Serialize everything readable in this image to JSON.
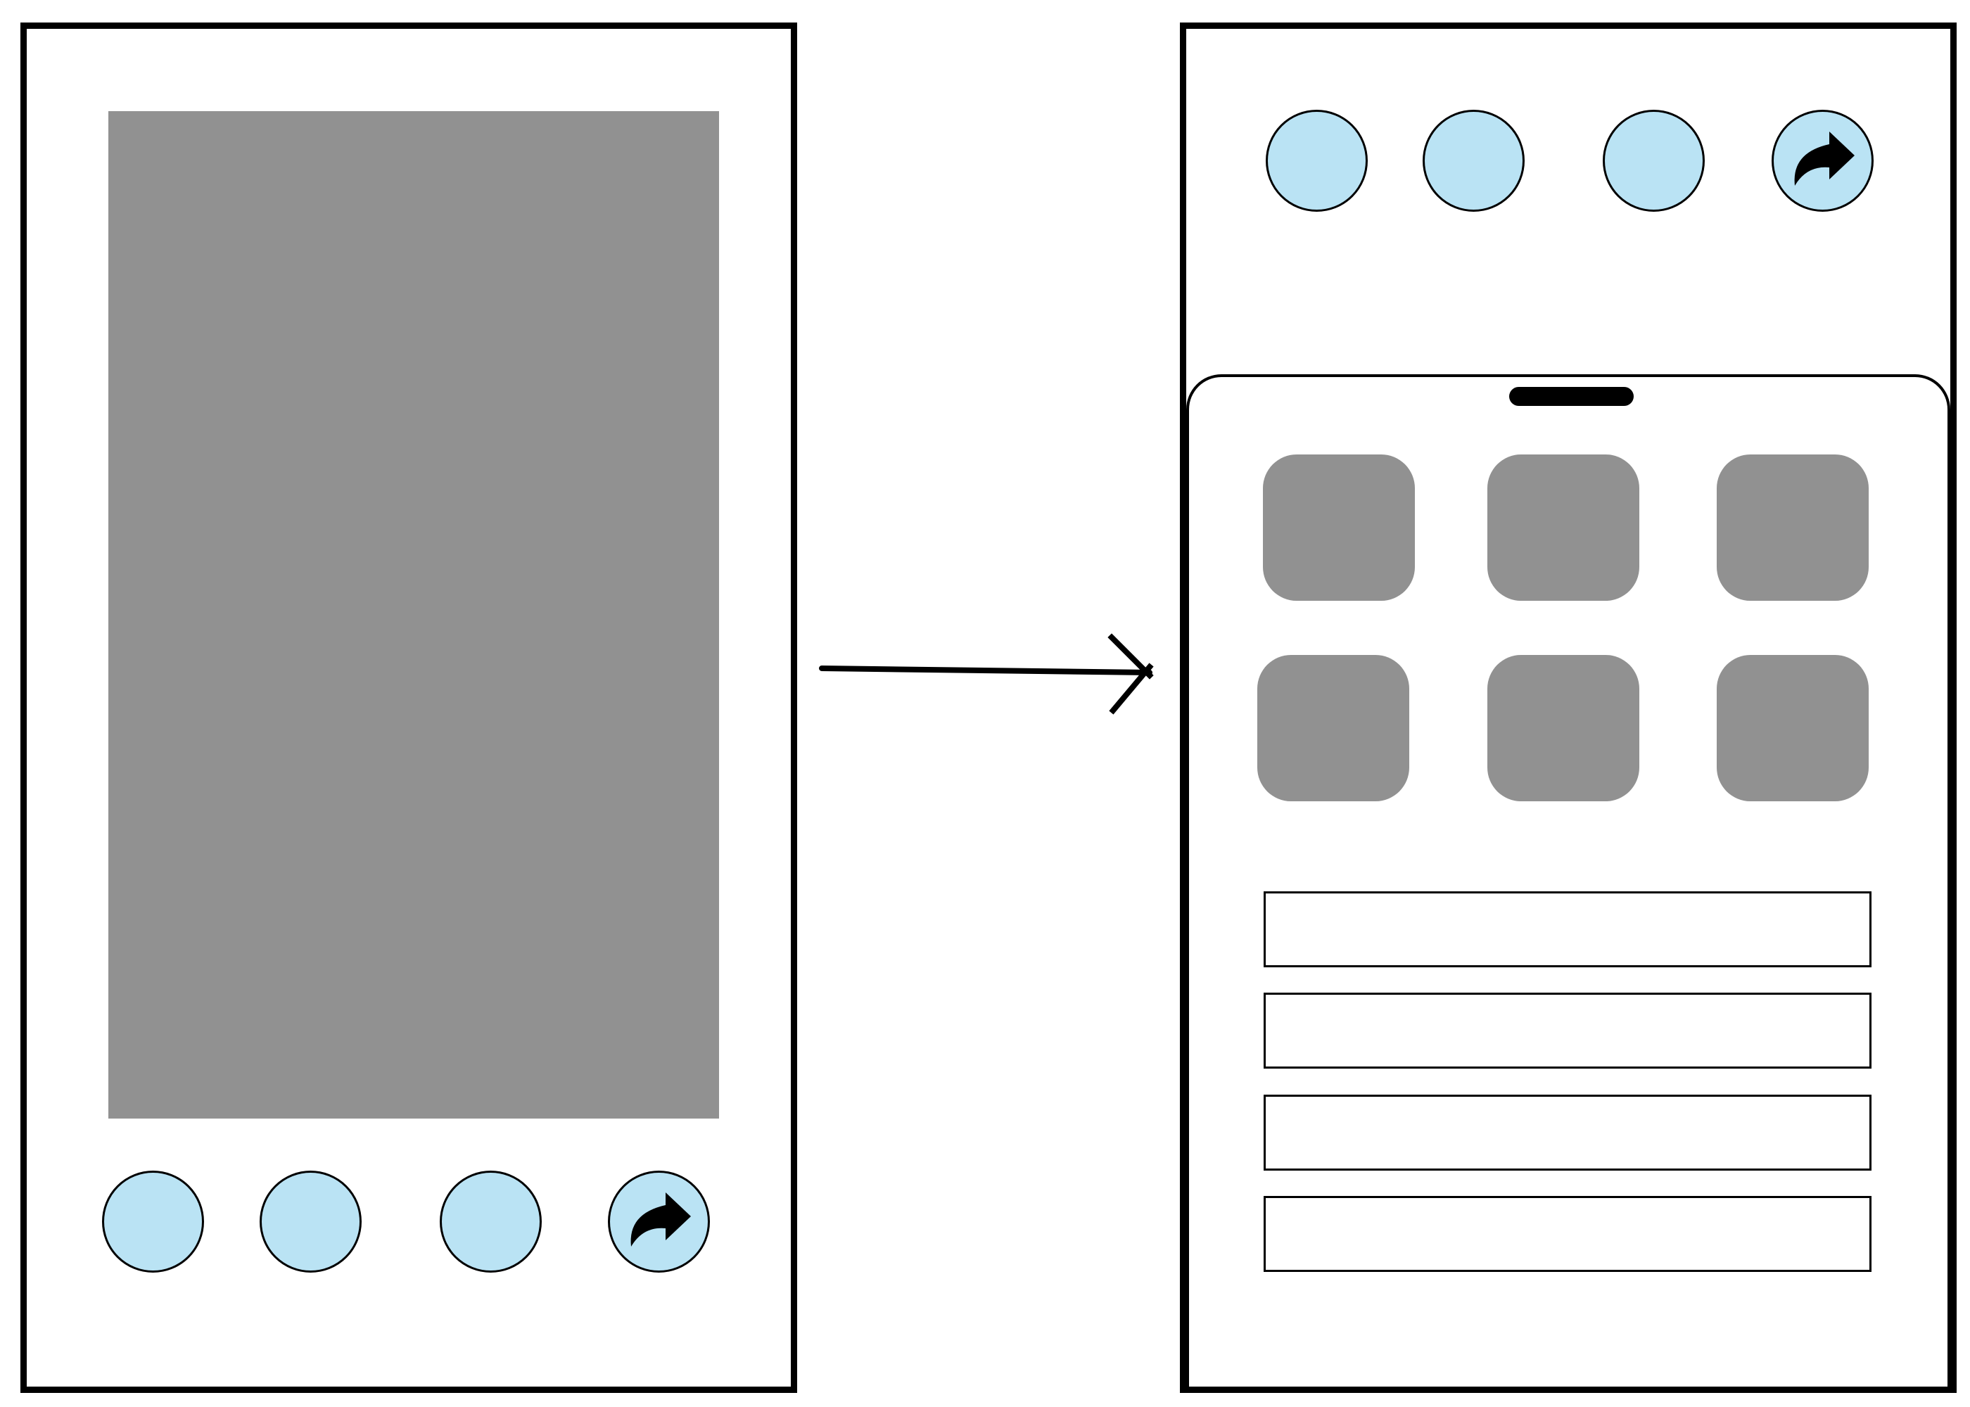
{
  "diagram": {
    "type": "ui-wireframe-transition",
    "screens": [
      {
        "id": "before",
        "content": "media-placeholder",
        "action_buttons": [
          "blank",
          "blank",
          "blank",
          "share-arrow-icon"
        ]
      },
      {
        "id": "after",
        "top_action_buttons": [
          "blank",
          "blank",
          "blank",
          "share-arrow-icon"
        ],
        "bottom_sheet": {
          "drag_handle": true,
          "tiles": 6,
          "tile_columns": 3,
          "list_rows": 4
        }
      }
    ],
    "transition": "right-arrow-icon"
  },
  "colors": {
    "outline": "#000000",
    "placeholder_gray": "#919191",
    "button_fill": "#bae3f4",
    "background": "#ffffff"
  }
}
